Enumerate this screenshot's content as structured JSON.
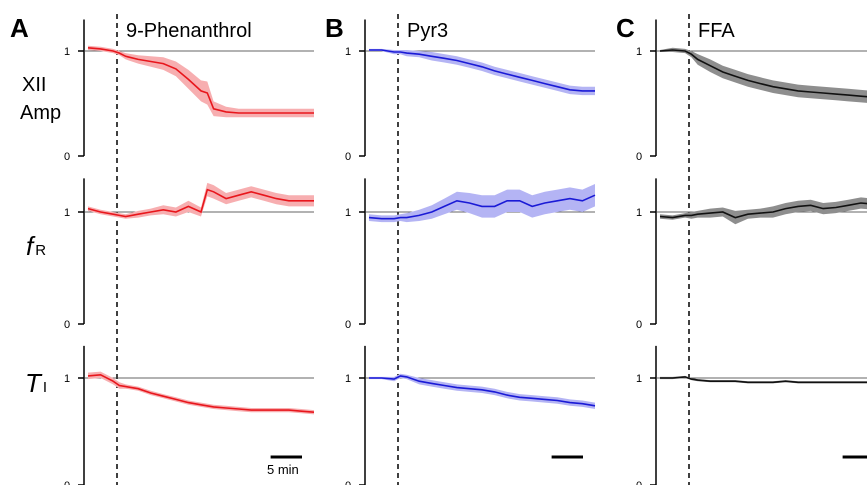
{
  "panels": [
    {
      "letter": "A",
      "title": "9-Phenanthrol",
      "color": "#e8161c",
      "band": "#f7aeb0"
    },
    {
      "letter": "B",
      "title": "Pyr3",
      "color": "#1a1ad6",
      "band": "#b4b4f4"
    },
    {
      "letter": "C",
      "title": "FFA",
      "color": "#111111",
      "band": "#8e8e8e"
    }
  ],
  "row_labels": {
    "amp_line1": "XII",
    "amp_line2": "Amp",
    "fr_main": "f",
    "fr_sub": "R",
    "ti_main": "T",
    "ti_sub": "I"
  },
  "tick_labels": {
    "one": "1",
    "zero": "0"
  },
  "scale_bar_label": "5 min",
  "chart_data": {
    "type": "line",
    "x_unit": "min",
    "drug_onset": 5,
    "x_range": [
      0,
      36
    ],
    "y_range": [
      0,
      1.3
    ],
    "reference_line": 1,
    "rows": [
      "XII Amp",
      "fR",
      "TI"
    ],
    "panels": [
      {
        "title": "9-Phenanthrol",
        "series": [
          {
            "row": "XII Amp",
            "x": [
              0,
              2,
              4,
              5,
              6,
              8,
              10,
              12,
              14,
              16,
              18,
              19,
              20,
              22,
              24,
              26,
              28,
              30,
              32,
              34,
              36
            ],
            "mean": [
              1.03,
              1.02,
              1.0,
              0.98,
              0.95,
              0.92,
              0.9,
              0.88,
              0.83,
              0.73,
              0.62,
              0.6,
              0.45,
              0.42,
              0.41,
              0.41,
              0.41,
              0.41,
              0.41,
              0.41,
              0.41
            ],
            "sem": [
              0.02,
              0.02,
              0.02,
              0.02,
              0.03,
              0.04,
              0.05,
              0.06,
              0.07,
              0.09,
              0.1,
              0.11,
              0.07,
              0.05,
              0.04,
              0.04,
              0.04,
              0.04,
              0.04,
              0.04,
              0.04
            ]
          },
          {
            "row": "fR",
            "x": [
              0,
              2,
              4,
              5,
              6,
              8,
              10,
              12,
              14,
              16,
              18,
              19,
              20,
              22,
              24,
              26,
              28,
              30,
              32,
              34,
              36
            ],
            "mean": [
              1.03,
              1.0,
              0.98,
              0.97,
              0.96,
              0.98,
              1.0,
              1.02,
              1.0,
              1.05,
              1.0,
              1.2,
              1.18,
              1.12,
              1.15,
              1.18,
              1.15,
              1.12,
              1.1,
              1.1,
              1.1
            ],
            "sem": [
              0.02,
              0.02,
              0.02,
              0.02,
              0.02,
              0.03,
              0.03,
              0.04,
              0.04,
              0.05,
              0.04,
              0.06,
              0.06,
              0.05,
              0.05,
              0.05,
              0.05,
              0.05,
              0.05,
              0.05,
              0.05
            ]
          },
          {
            "row": "TI",
            "x": [
              0,
              2,
              4,
              5,
              6,
              8,
              10,
              12,
              14,
              16,
              18,
              20,
              22,
              24,
              26,
              28,
              30,
              32,
              34,
              36
            ],
            "mean": [
              1.02,
              1.03,
              0.97,
              0.93,
              0.92,
              0.9,
              0.86,
              0.83,
              0.8,
              0.77,
              0.75,
              0.73,
              0.72,
              0.71,
              0.7,
              0.7,
              0.7,
              0.7,
              0.69,
              0.68
            ],
            "sem": [
              0.03,
              0.03,
              0.03,
              0.03,
              0.02,
              0.02,
              0.02,
              0.02,
              0.02,
              0.02,
              0.02,
              0.02,
              0.02,
              0.02,
              0.02,
              0.02,
              0.02,
              0.02,
              0.02,
              0.02
            ]
          }
        ]
      },
      {
        "title": "Pyr3",
        "series": [
          {
            "row": "XII Amp",
            "x": [
              0,
              2,
              4,
              5,
              6,
              8,
              10,
              12,
              14,
              16,
              18,
              20,
              22,
              24,
              26,
              28,
              30,
              32,
              34,
              36
            ],
            "mean": [
              1.01,
              1.01,
              0.99,
              0.99,
              0.98,
              0.97,
              0.95,
              0.93,
              0.91,
              0.88,
              0.85,
              0.81,
              0.78,
              0.75,
              0.72,
              0.69,
              0.66,
              0.63,
              0.62,
              0.62
            ],
            "sem": [
              0.01,
              0.01,
              0.02,
              0.02,
              0.03,
              0.03,
              0.04,
              0.04,
              0.04,
              0.04,
              0.04,
              0.04,
              0.04,
              0.04,
              0.04,
              0.04,
              0.04,
              0.04,
              0.04,
              0.04
            ]
          },
          {
            "row": "fR",
            "x": [
              0,
              2,
              4,
              5,
              6,
              8,
              10,
              12,
              14,
              16,
              18,
              20,
              22,
              24,
              26,
              28,
              30,
              32,
              34,
              36
            ],
            "mean": [
              0.95,
              0.94,
              0.94,
              0.95,
              0.95,
              0.97,
              1.0,
              1.05,
              1.1,
              1.08,
              1.05,
              1.05,
              1.1,
              1.1,
              1.05,
              1.08,
              1.1,
              1.12,
              1.1,
              1.15
            ],
            "sem": [
              0.03,
              0.03,
              0.03,
              0.03,
              0.04,
              0.05,
              0.06,
              0.07,
              0.08,
              0.09,
              0.1,
              0.1,
              0.1,
              0.1,
              0.1,
              0.1,
              0.1,
              0.1,
              0.1,
              0.1
            ]
          },
          {
            "row": "TI",
            "x": [
              0,
              2,
              4,
              5,
              6,
              8,
              10,
              12,
              14,
              16,
              18,
              20,
              22,
              24,
              26,
              28,
              30,
              32,
              34,
              36
            ],
            "mean": [
              1.0,
              1.0,
              0.99,
              1.02,
              1.01,
              0.97,
              0.95,
              0.93,
              0.91,
              0.9,
              0.89,
              0.87,
              0.84,
              0.82,
              0.81,
              0.8,
              0.79,
              0.77,
              0.76,
              0.74
            ],
            "sem": [
              0.01,
              0.01,
              0.02,
              0.02,
              0.02,
              0.03,
              0.03,
              0.03,
              0.03,
              0.03,
              0.03,
              0.03,
              0.03,
              0.03,
              0.03,
              0.03,
              0.03,
              0.03,
              0.03,
              0.03
            ]
          }
        ]
      },
      {
        "title": "FFA",
        "series": [
          {
            "row": "XII Amp",
            "x": [
              0,
              2,
              4,
              5,
              6,
              8,
              10,
              12,
              14,
              16,
              18,
              20,
              22,
              24,
              26,
              28,
              30,
              32,
              34,
              36
            ],
            "mean": [
              1.0,
              1.01,
              1.0,
              0.97,
              0.92,
              0.86,
              0.8,
              0.76,
              0.72,
              0.69,
              0.66,
              0.64,
              0.62,
              0.61,
              0.6,
              0.59,
              0.58,
              0.57,
              0.56,
              0.55
            ],
            "sem": [
              0.01,
              0.02,
              0.02,
              0.03,
              0.05,
              0.06,
              0.06,
              0.06,
              0.06,
              0.06,
              0.06,
              0.06,
              0.06,
              0.06,
              0.06,
              0.06,
              0.06,
              0.06,
              0.06,
              0.06
            ]
          },
          {
            "row": "fR",
            "x": [
              0,
              2,
              4,
              5,
              6,
              8,
              10,
              12,
              14,
              16,
              18,
              20,
              22,
              24,
              26,
              28,
              30,
              32,
              34,
              36
            ],
            "mean": [
              0.96,
              0.95,
              0.97,
              0.97,
              0.98,
              0.99,
              1.0,
              0.95,
              0.98,
              0.99,
              1.0,
              1.03,
              1.05,
              1.06,
              1.03,
              1.04,
              1.06,
              1.08,
              1.07,
              1.07
            ],
            "sem": [
              0.02,
              0.02,
              0.02,
              0.03,
              0.03,
              0.04,
              0.04,
              0.06,
              0.04,
              0.04,
              0.05,
              0.05,
              0.05,
              0.05,
              0.05,
              0.05,
              0.05,
              0.05,
              0.05,
              0.05
            ]
          },
          {
            "row": "TI",
            "x": [
              0,
              2,
              4,
              5,
              6,
              8,
              10,
              12,
              14,
              16,
              18,
              20,
              22,
              24,
              26,
              28,
              30,
              32,
              34,
              36
            ],
            "mean": [
              1.0,
              1.0,
              1.01,
              0.99,
              0.98,
              0.97,
              0.97,
              0.97,
              0.96,
              0.96,
              0.96,
              0.97,
              0.96,
              0.96,
              0.96,
              0.96,
              0.96,
              0.96,
              0.96,
              0.96
            ],
            "sem": [
              0.01,
              0.01,
              0.01,
              0.01,
              0.01,
              0.01,
              0.01,
              0.01,
              0.01,
              0.01,
              0.01,
              0.01,
              0.01,
              0.01,
              0.01,
              0.01,
              0.01,
              0.01,
              0.01,
              0.01
            ]
          }
        ]
      }
    ]
  }
}
